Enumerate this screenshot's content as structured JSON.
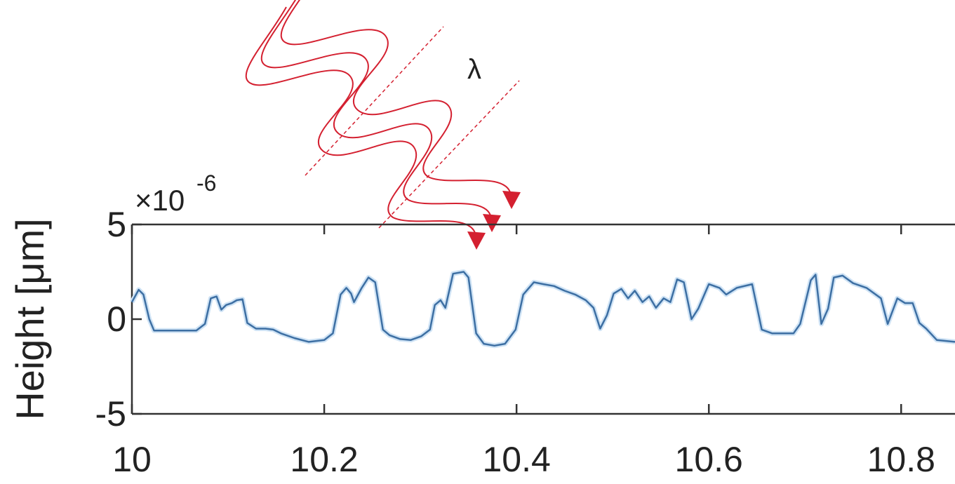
{
  "chart_data": {
    "type": "line",
    "ylabel": "Height [μm]",
    "y_exponent_base": "×10",
    "y_exponent_power": "-6",
    "annotation": "λ",
    "color": "#3d6fa3",
    "xlim": [
      10,
      10.856
    ],
    "ylim": [
      -5,
      5
    ],
    "xticks": [
      10,
      10.2,
      10.4,
      10.6,
      10.8
    ],
    "yticks": [
      -5,
      0,
      5
    ],
    "x": [
      10,
      10.007,
      10.012,
      10.018,
      10.023,
      10.067,
      10.076,
      10.082,
      10.088,
      10.093,
      10.098,
      10.104,
      10.109,
      10.115,
      10.12,
      10.129,
      10.139,
      10.147,
      10.155,
      10.169,
      10.184,
      10.2,
      10.209,
      10.217,
      10.223,
      10.228,
      10.231,
      10.239,
      10.246,
      10.253,
      10.261,
      10.268,
      10.279,
      10.29,
      10.301,
      10.31,
      10.315,
      10.321,
      10.326,
      10.334,
      10.345,
      10.35,
      10.358,
      10.366,
      10.377,
      10.388,
      10.399,
      10.407,
      10.418,
      10.428,
      10.439,
      10.45,
      10.461,
      10.472,
      10.48,
      10.487,
      10.494,
      10.501,
      10.509,
      10.516,
      10.523,
      10.531,
      10.538,
      10.545,
      10.553,
      10.56,
      10.567,
      10.574,
      10.582,
      10.589,
      10.6,
      10.611,
      10.618,
      10.629,
      10.645,
      10.655,
      10.666,
      10.688,
      10.695,
      10.706,
      10.711,
      10.717,
      10.724,
      10.73,
      10.739,
      10.75,
      10.764,
      10.779,
      10.786,
      10.796,
      10.804,
      10.812,
      10.819,
      10.826,
      10.837,
      10.856
    ],
    "values": [
      0.9,
      1.55,
      1.3,
      0,
      -0.6,
      -0.6,
      -0.25,
      1.1,
      1.2,
      0.5,
      0.75,
      0.85,
      1.0,
      1.05,
      -0.2,
      -0.5,
      -0.5,
      -0.55,
      -0.75,
      -1.0,
      -1.2,
      -1.1,
      -0.75,
      1.3,
      1.65,
      1.35,
      0.9,
      1.65,
      2.2,
      1.95,
      -0.55,
      -0.85,
      -1.05,
      -1.1,
      -0.9,
      -0.55,
      0.75,
      1.0,
      0.6,
      2.4,
      2.5,
      2.2,
      -0.75,
      -1.3,
      -1.4,
      -1.3,
      -0.55,
      1.3,
      1.95,
      1.85,
      1.75,
      1.5,
      1.3,
      1.0,
      0.6,
      -0.5,
      0.2,
      1.35,
      1.6,
      1.1,
      1.5,
      0.9,
      1.2,
      0.6,
      1.1,
      0.9,
      2.1,
      1.95,
      0,
      0.55,
      1.85,
      1.65,
      1.3,
      1.65,
      1.85,
      -0.55,
      -0.75,
      -0.75,
      -0.25,
      2.05,
      2.35,
      -0.25,
      0.55,
      2.2,
      2.3,
      1.9,
      1.65,
      1.1,
      -0.25,
      1.1,
      0.85,
      0.85,
      -0.2,
      -0.5,
      -1.1,
      -1.2
    ]
  }
}
